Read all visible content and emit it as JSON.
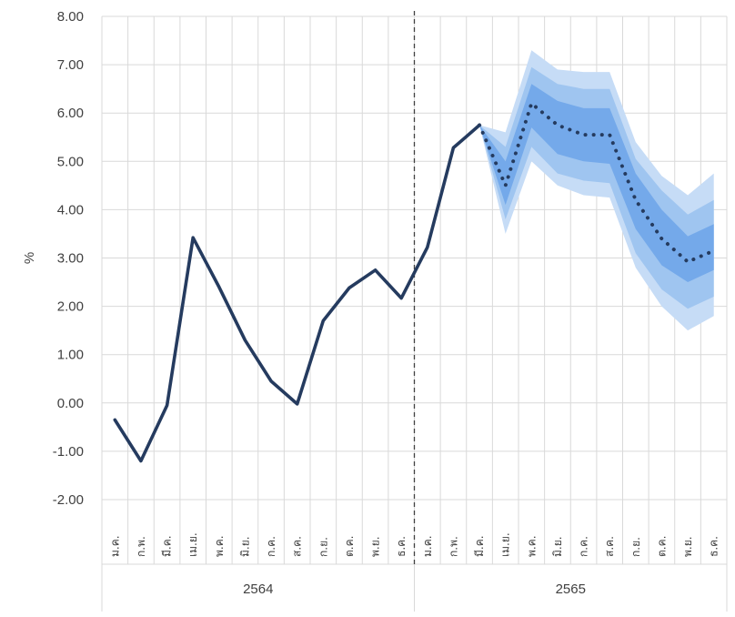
{
  "chart_data": {
    "type": "line",
    "ylabel": "%",
    "ylim": [
      -2,
      8
    ],
    "yticks": [
      "8.00",
      "7.00",
      "6.00",
      "5.00",
      "4.00",
      "3.00",
      "2.00",
      "1.00",
      "0.00",
      "-1.00",
      "-2.00"
    ],
    "grid": true,
    "categories": [
      "ม.ค.",
      "ก.พ.",
      "มี.ค.",
      "เม.ย.",
      "พ.ค.",
      "มิ.ย.",
      "ก.ค.",
      "ส.ค.",
      "ก.ย.",
      "ต.ค.",
      "พ.ย.",
      "ธ.ค.",
      "ม.ค.",
      "ก.พ.",
      "มี.ค.",
      "เม.ย.",
      "พ.ค.",
      "มิ.ย.",
      "ก.ค.",
      "ส.ค.",
      "ก.ย.",
      "ต.ค.",
      "พ.ย.",
      "ธ.ค."
    ],
    "years": [
      {
        "label": "2564",
        "start": 0,
        "end": 11
      },
      {
        "label": "2565",
        "start": 12,
        "end": 23
      }
    ],
    "divider_after_index": 11,
    "actual": {
      "color": "#253b5f",
      "values": [
        -0.35,
        -1.2,
        -0.05,
        3.42,
        2.4,
        1.3,
        0.45,
        -0.02,
        1.7,
        2.38,
        2.75,
        2.17,
        3.22,
        5.28,
        5.75
      ]
    },
    "forecast": {
      "color": "#253b5f",
      "start_index": 14,
      "median": [
        5.75,
        4.5,
        6.2,
        5.75,
        5.55,
        5.55,
        4.2,
        3.4,
        2.92,
        3.15
      ],
      "bands": [
        {
          "color": "#c6dcf6",
          "lower": [
            5.75,
            3.5,
            5.0,
            4.5,
            4.3,
            4.25,
            2.8,
            2.0,
            1.5,
            1.8
          ],
          "upper": [
            5.75,
            5.6,
            7.3,
            6.9,
            6.85,
            6.85,
            5.4,
            4.7,
            4.3,
            4.75
          ]
        },
        {
          "color": "#9fc5f0",
          "lower": [
            5.75,
            3.8,
            5.3,
            4.75,
            4.6,
            4.55,
            3.1,
            2.35,
            1.95,
            2.2
          ],
          "upper": [
            5.75,
            5.3,
            6.95,
            6.6,
            6.5,
            6.5,
            5.05,
            4.4,
            3.9,
            4.2
          ]
        },
        {
          "color": "#74a9ea",
          "lower": [
            5.75,
            4.1,
            5.7,
            5.15,
            5.0,
            4.95,
            3.6,
            2.85,
            2.5,
            2.75
          ],
          "upper": [
            5.75,
            5.0,
            6.6,
            6.25,
            6.1,
            6.1,
            4.75,
            4.0,
            3.45,
            3.7
          ]
        }
      ]
    }
  }
}
